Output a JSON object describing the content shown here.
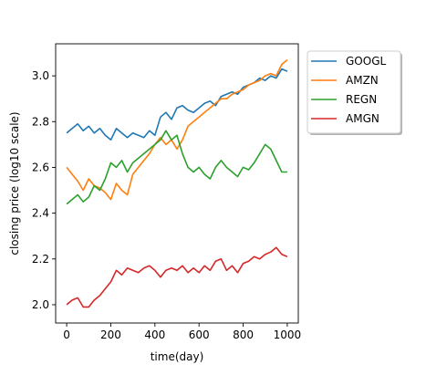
{
  "chart_data": {
    "type": "line",
    "xlabel": "time(day)",
    "ylabel": "closing price (log10 scale)",
    "xlim": [
      -50,
      1050
    ],
    "ylim": [
      1.92,
      3.14
    ],
    "xticks": [
      0,
      200,
      400,
      600,
      800,
      1000
    ],
    "xtick_labels": [
      "0",
      "200",
      "400",
      "600",
      "800",
      "1000"
    ],
    "yticks": [
      2.0,
      2.2,
      2.4,
      2.6,
      2.8,
      3.0
    ],
    "ytick_labels": [
      "2.0",
      "2.2",
      "2.4",
      "2.6",
      "2.8",
      "3.0"
    ],
    "grid": false,
    "legend_position": "outside-right-top",
    "series": [
      {
        "name": "GOOGL",
        "color": "#1f77b4",
        "x": [
          0,
          25,
          50,
          75,
          100,
          125,
          150,
          175,
          200,
          225,
          250,
          275,
          300,
          325,
          350,
          375,
          400,
          425,
          450,
          475,
          500,
          525,
          550,
          575,
          600,
          625,
          650,
          675,
          700,
          725,
          750,
          775,
          800,
          825,
          850,
          875,
          900,
          925,
          950,
          975,
          1000
        ],
        "y": [
          2.75,
          2.77,
          2.79,
          2.76,
          2.78,
          2.75,
          2.77,
          2.74,
          2.72,
          2.77,
          2.75,
          2.73,
          2.75,
          2.74,
          2.73,
          2.76,
          2.74,
          2.82,
          2.84,
          2.81,
          2.86,
          2.87,
          2.85,
          2.84,
          2.86,
          2.88,
          2.89,
          2.87,
          2.91,
          2.92,
          2.93,
          2.92,
          2.95,
          2.96,
          2.97,
          2.99,
          2.98,
          3.0,
          2.99,
          3.03,
          3.02
        ]
      },
      {
        "name": "AMZN",
        "color": "#ff7f0e",
        "x": [
          0,
          25,
          50,
          75,
          100,
          125,
          150,
          175,
          200,
          225,
          250,
          275,
          300,
          325,
          350,
          375,
          400,
          425,
          450,
          475,
          500,
          525,
          550,
          575,
          600,
          625,
          650,
          675,
          700,
          725,
          750,
          775,
          800,
          825,
          850,
          875,
          900,
          925,
          950,
          975,
          1000
        ],
        "y": [
          2.6,
          2.57,
          2.54,
          2.5,
          2.55,
          2.52,
          2.51,
          2.49,
          2.46,
          2.53,
          2.5,
          2.48,
          2.57,
          2.6,
          2.63,
          2.66,
          2.7,
          2.73,
          2.7,
          2.72,
          2.68,
          2.72,
          2.78,
          2.8,
          2.82,
          2.84,
          2.86,
          2.88,
          2.9,
          2.9,
          2.92,
          2.93,
          2.94,
          2.96,
          2.97,
          2.98,
          3.0,
          3.01,
          3.0,
          3.05,
          3.07
        ]
      },
      {
        "name": "REGN",
        "color": "#2ca02c",
        "x": [
          0,
          25,
          50,
          75,
          100,
          125,
          150,
          175,
          200,
          225,
          250,
          275,
          300,
          325,
          350,
          375,
          400,
          425,
          450,
          475,
          500,
          525,
          550,
          575,
          600,
          625,
          650,
          675,
          700,
          725,
          750,
          775,
          800,
          825,
          850,
          875,
          900,
          925,
          950,
          975,
          1000
        ],
        "y": [
          2.44,
          2.46,
          2.48,
          2.45,
          2.47,
          2.52,
          2.5,
          2.55,
          2.62,
          2.6,
          2.63,
          2.58,
          2.62,
          2.64,
          2.66,
          2.68,
          2.7,
          2.72,
          2.76,
          2.72,
          2.74,
          2.66,
          2.6,
          2.58,
          2.6,
          2.57,
          2.55,
          2.6,
          2.63,
          2.6,
          2.58,
          2.56,
          2.6,
          2.59,
          2.62,
          2.66,
          2.7,
          2.68,
          2.63,
          2.58,
          2.58
        ]
      },
      {
        "name": "AMGN",
        "color": "#d62728",
        "x": [
          0,
          25,
          50,
          75,
          100,
          125,
          150,
          175,
          200,
          225,
          250,
          275,
          300,
          325,
          350,
          375,
          400,
          425,
          450,
          475,
          500,
          525,
          550,
          575,
          600,
          625,
          650,
          675,
          700,
          725,
          750,
          775,
          800,
          825,
          850,
          875,
          900,
          925,
          950,
          975,
          1000
        ],
        "y": [
          2.0,
          2.02,
          2.03,
          1.99,
          1.99,
          2.02,
          2.04,
          2.07,
          2.1,
          2.15,
          2.13,
          2.16,
          2.15,
          2.14,
          2.16,
          2.17,
          2.15,
          2.12,
          2.15,
          2.16,
          2.15,
          2.17,
          2.14,
          2.16,
          2.14,
          2.17,
          2.15,
          2.19,
          2.2,
          2.15,
          2.17,
          2.14,
          2.18,
          2.19,
          2.21,
          2.2,
          2.22,
          2.23,
          2.25,
          2.22,
          2.21
        ]
      }
    ]
  }
}
